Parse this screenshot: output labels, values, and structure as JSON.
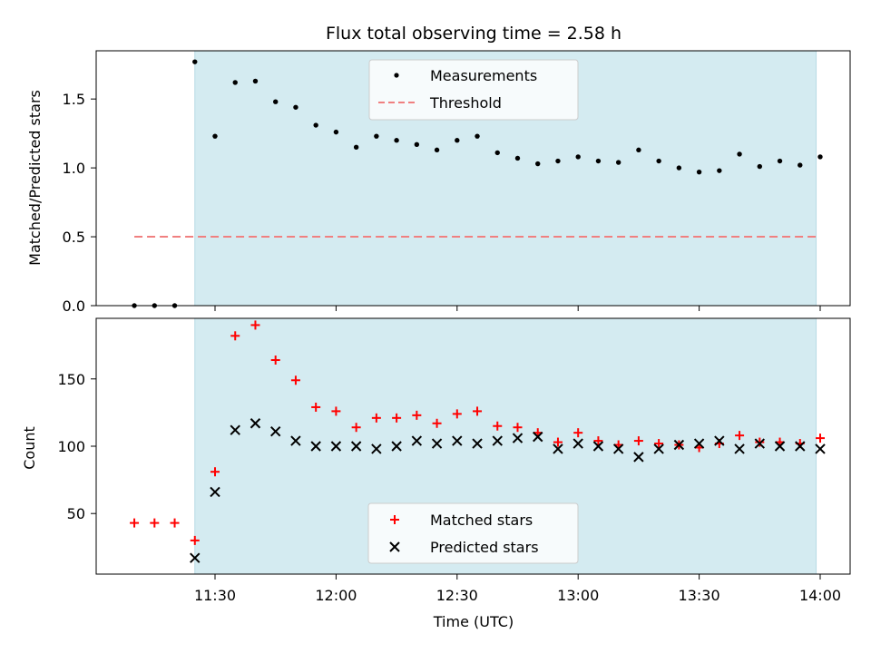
{
  "chart_data": [
    {
      "type": "scatter",
      "title": "Flux total observing time = 2.58 h",
      "xlabel": "",
      "ylabel": "Matched/Predicted stars",
      "ylim": [
        0,
        1.85
      ],
      "yticks": [
        "0.0",
        "0.5",
        "1.0",
        "1.5"
      ],
      "legend_position": "top-center",
      "shaded_region": {
        "x_start": "11:25",
        "x_end": "13:59",
        "color": "#d4ebf1"
      },
      "series": [
        {
          "name": "Measurements",
          "marker": "dot",
          "color": "#000000",
          "x": [
            "11:10",
            "11:15",
            "11:20",
            "11:25",
            "11:30",
            "11:35",
            "11:40",
            "11:45",
            "11:50",
            "11:55",
            "12:00",
            "12:05",
            "12:10",
            "12:15",
            "12:20",
            "12:25",
            "12:30",
            "12:35",
            "12:40",
            "12:45",
            "12:50",
            "12:55",
            "13:00",
            "13:05",
            "13:10",
            "13:15",
            "13:20",
            "13:25",
            "13:30",
            "13:35",
            "13:40",
            "13:45",
            "13:50",
            "13:55",
            "14:00"
          ],
          "y": [
            0,
            0,
            0,
            1.77,
            1.23,
            1.62,
            1.63,
            1.48,
            1.44,
            1.31,
            1.26,
            1.15,
            1.23,
            1.2,
            1.17,
            1.13,
            1.2,
            1.23,
            1.11,
            1.07,
            1.03,
            1.05,
            1.08,
            1.05,
            1.04,
            1.13,
            1.05,
            1.0,
            0.97,
            0.98,
            1.1,
            1.01,
            1.05,
            1.02,
            1.08
          ]
        },
        {
          "name": "Threshold",
          "marker": "dashed-line",
          "color": "#f08080",
          "x": [
            "11:10",
            "14:00"
          ],
          "y": [
            0.5,
            0.5
          ]
        }
      ]
    },
    {
      "type": "scatter",
      "title": "",
      "xlabel": "Time (UTC)",
      "ylabel": "Count",
      "ylim": [
        5,
        195
      ],
      "yticks": [
        "50",
        "100",
        "150"
      ],
      "xticks": [
        "11:30",
        "12:00",
        "12:30",
        "13:00",
        "13:30",
        "14:00"
      ],
      "legend_position": "bottom-center",
      "shaded_region": {
        "x_start": "11:25",
        "x_end": "13:59",
        "color": "#d4ebf1"
      },
      "series": [
        {
          "name": "Matched stars",
          "marker": "plus",
          "color": "#ff0000",
          "x": [
            "11:10",
            "11:15",
            "11:20",
            "11:25",
            "11:30",
            "11:35",
            "11:40",
            "11:45",
            "11:50",
            "11:55",
            "12:00",
            "12:05",
            "12:10",
            "12:15",
            "12:20",
            "12:25",
            "12:30",
            "12:35",
            "12:40",
            "12:45",
            "12:50",
            "12:55",
            "13:00",
            "13:05",
            "13:10",
            "13:15",
            "13:20",
            "13:25",
            "13:30",
            "13:35",
            "13:40",
            "13:45",
            "13:50",
            "13:55",
            "14:00"
          ],
          "y": [
            43,
            43,
            43,
            30,
            81,
            182,
            190,
            164,
            149,
            129,
            126,
            114,
            121,
            121,
            123,
            117,
            124,
            126,
            115,
            114,
            110,
            103,
            110,
            104,
            101,
            104,
            102,
            101,
            99,
            102,
            108,
            103,
            103,
            102,
            106
          ]
        },
        {
          "name": "Predicted stars",
          "marker": "x",
          "color": "#000000",
          "x": [
            "11:25",
            "11:30",
            "11:35",
            "11:40",
            "11:45",
            "11:50",
            "11:55",
            "12:00",
            "12:05",
            "12:10",
            "12:15",
            "12:20",
            "12:25",
            "12:30",
            "12:35",
            "12:40",
            "12:45",
            "12:50",
            "12:55",
            "13:00",
            "13:05",
            "13:10",
            "13:15",
            "13:20",
            "13:25",
            "13:30",
            "13:35",
            "13:40",
            "13:45",
            "13:50",
            "13:55",
            "14:00"
          ],
          "y": [
            17,
            66,
            112,
            117,
            111,
            104,
            100,
            100,
            100,
            98,
            100,
            104,
            102,
            104,
            102,
            104,
            106,
            107,
            98,
            102,
            100,
            98,
            92,
            98,
            101,
            102,
            104,
            98,
            102,
            100,
            100,
            98
          ]
        }
      ]
    }
  ]
}
